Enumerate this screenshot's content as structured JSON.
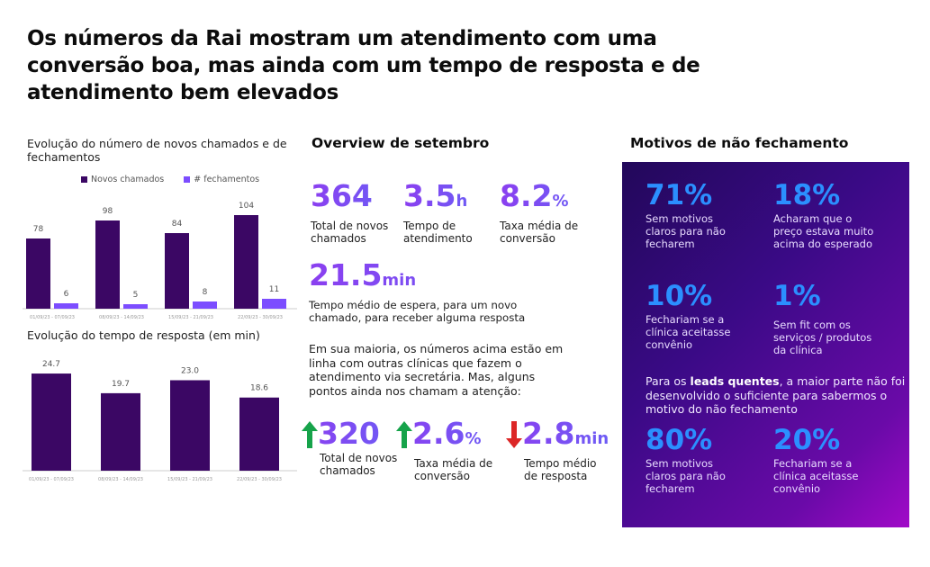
{
  "headline": "Os números da Rai mostram um atendimento com uma conversão boa, mas ainda com um tempo de resposta e de atendimento bem elevados",
  "chart_data": [
    {
      "type": "bar",
      "title": "Evolução do número de novos chamados e de fechamentos",
      "categories": [
        "01/09/23 - 07/09/23",
        "08/09/23 - 14/09/23",
        "15/09/23 - 21/09/23",
        "22/09/23 - 30/09/23"
      ],
      "series": [
        {
          "name": "Novos chamados",
          "values": [
            78,
            98,
            84,
            104
          ],
          "color": "#3b0764"
        },
        {
          "name": "# fechamentos",
          "values": [
            6,
            5,
            8,
            11
          ],
          "color": "#7c4dff"
        }
      ],
      "legend": "top-center",
      "ylim": [
        0,
        110
      ],
      "grid": false
    },
    {
      "type": "bar",
      "title": "Evolução do tempo de resposta (em min)",
      "categories": [
        "01/09/23 - 07/09/23",
        "08/09/23 - 14/09/23",
        "15/09/23 - 21/09/23",
        "22/09/23 - 30/09/23"
      ],
      "values": [
        24.7,
        19.7,
        23.0,
        18.6
      ],
      "value_labels": [
        "24.7",
        "19.7",
        "23.0",
        "18.6"
      ],
      "color": "#3b0764",
      "ylim": [
        0,
        27
      ],
      "grid": false
    }
  ],
  "overview": {
    "title": "Overview de setembro",
    "kpis": [
      {
        "value": "364",
        "unit": "",
        "label_1": "Total de novos",
        "label_2": "chamados"
      },
      {
        "value": "3.5",
        "unit": "h",
        "label_1": "Tempo de",
        "label_2": "atendimento"
      },
      {
        "value": "8.2",
        "unit": "%",
        "label_1": "Taxa média de",
        "label_2": "conversão"
      }
    ],
    "wait": {
      "value": "21.5",
      "unit": "min",
      "label_1": "Tempo médio de espera, para um novo",
      "label_2": "chamado, para receber alguma resposta"
    },
    "paragraph": [
      "Em sua maioria, os números acima estão em",
      "linha com outras clínicas que fazem o",
      "atendimento via secretária. Mas, alguns",
      "pontos ainda nos chamam a atenção:"
    ],
    "trends": [
      {
        "direction": "up",
        "value": "320",
        "unit": "",
        "label_1": "Total de novos",
        "label_2": "chamados",
        "color": "#16a34a"
      },
      {
        "direction": "up",
        "value": "2.6",
        "unit": "%",
        "label_1": "Taxa média de",
        "label_2": "conversão",
        "color": "#16a34a"
      },
      {
        "direction": "down",
        "value": "2.8",
        "unit": "min",
        "label_1": "Tempo médio",
        "label_2": "de resposta",
        "color": "#dc2626"
      }
    ]
  },
  "motivos": {
    "title": "Motivos de não fechamento",
    "stats": [
      {
        "pct": "71%",
        "lines": [
          "Sem motivos",
          "claros para não",
          "fecharem"
        ]
      },
      {
        "pct": "18%",
        "lines": [
          "Acharam que o",
          "preço estava muito",
          "acima do esperado"
        ]
      },
      {
        "pct": "10%",
        "lines": [
          "Fechariam se a",
          "clínica aceitasse",
          "convênio"
        ]
      },
      {
        "pct": "1%",
        "lines": [
          "Sem fit com os",
          "serviços / produtos",
          "da clínica"
        ]
      }
    ],
    "note": {
      "pre": "Para os ",
      "bold": "leads quentes",
      "post": ", a maior parte não foi desenvolvido o suficiente para sabermos o motivo do não fechamento"
    },
    "hot_stats": [
      {
        "pct": "80%",
        "lines": [
          "Sem motivos",
          "claros para não",
          "fecharem"
        ]
      },
      {
        "pct": "20%",
        "lines": [
          "Fechariam se a",
          "clínica aceitasse",
          "convênio"
        ]
      }
    ]
  }
}
